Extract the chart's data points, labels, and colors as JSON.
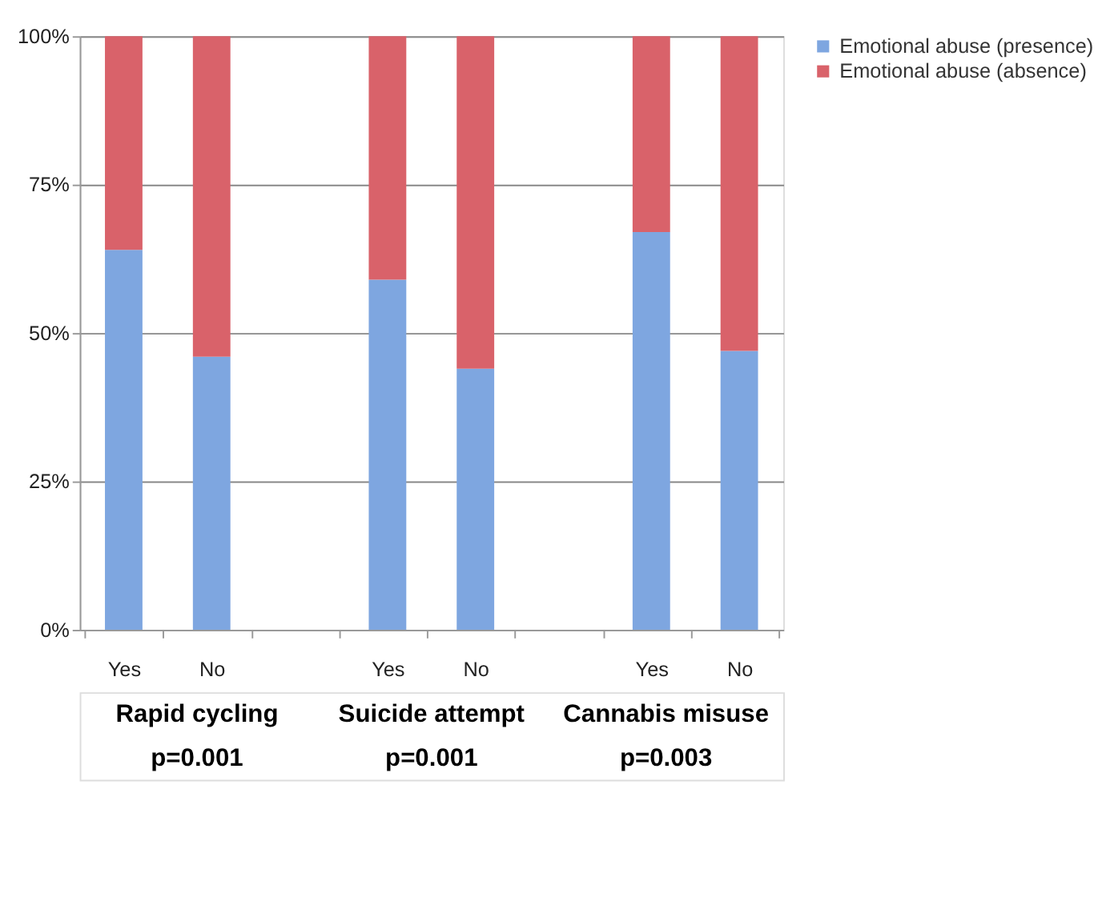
{
  "chart_data": {
    "type": "bar",
    "stacked": true,
    "categories": [
      "Yes",
      "No",
      null,
      "Yes",
      "No",
      null,
      "Yes",
      "No"
    ],
    "series": [
      {
        "name": "Emotional abuse (presence)",
        "color": "#7ea6e0",
        "values": [
          64,
          46,
          null,
          59,
          44,
          null,
          67,
          47
        ]
      },
      {
        "name": "Emotional abuse (absence)",
        "color": "#d9626a",
        "values": [
          36,
          54,
          null,
          41,
          56,
          null,
          33,
          53
        ]
      }
    ],
    "ylim": [
      0,
      100
    ],
    "yticks": [
      {
        "value": 0,
        "label": "0%"
      },
      {
        "value": 25,
        "label": "25%"
      },
      {
        "value": 50,
        "label": "50%"
      },
      {
        "value": 75,
        "label": "75%"
      },
      {
        "value": 100,
        "label": "100%"
      }
    ],
    "grid": "y",
    "legend": "right",
    "annotations": [
      "Rapid cycling",
      "Suicide attempt",
      "Cannabis misuse",
      "p=0.001",
      "p=0.001",
      "p=0.003"
    ]
  }
}
